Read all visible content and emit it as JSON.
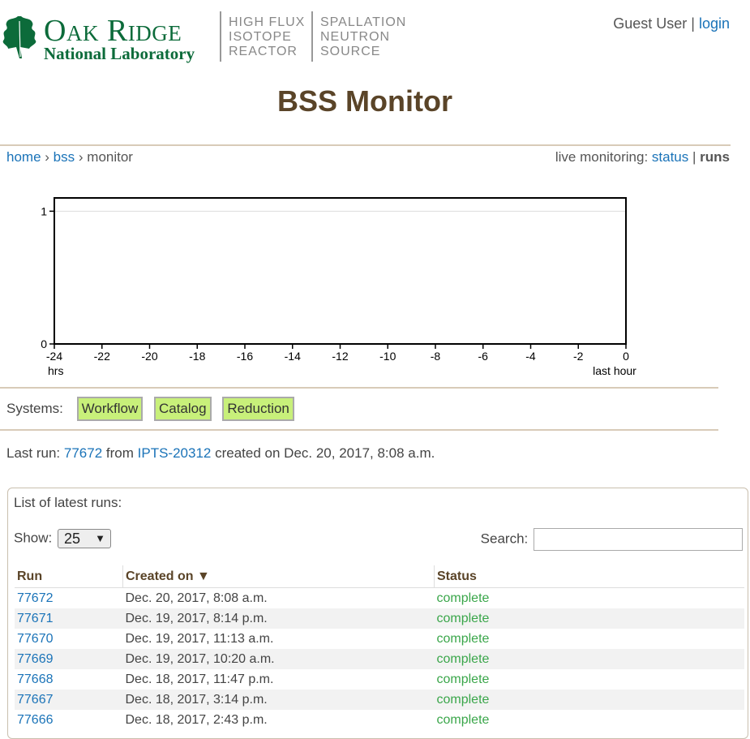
{
  "header": {
    "org_name": "Oak Ridge",
    "org_subtitle": "National Laboratory",
    "facility_1": "HIGH FLUX\nISOTOPE\nREACTOR",
    "facility_2": "SPALLATION\nNEUTRON\nSOURCE",
    "user_name": "Guest User",
    "separator": "|",
    "login_label": "login",
    "logo_icon": "oak-leaf-icon",
    "brand_color": "#0c6b3a"
  },
  "page_title": "BSS Monitor",
  "breadcrumb": {
    "home": "home",
    "sep": "›",
    "instrument": "bss",
    "current": "monitor"
  },
  "live_monitoring": {
    "label": "live monitoring:",
    "status_link": "status",
    "separator": "|",
    "runs_label": "runs"
  },
  "chart_data": {
    "type": "line",
    "series": [],
    "x_ticks": [
      "-24",
      "-22",
      "-20",
      "-18",
      "-16",
      "-14",
      "-12",
      "-10",
      "-8",
      "-6",
      "-4",
      "-2",
      "0"
    ],
    "xlim": [
      -24,
      0
    ],
    "y_ticks": [
      "0",
      "1"
    ],
    "ylim": [
      0,
      1.1
    ],
    "xlabel_left": "hrs",
    "xlabel_right": "last hour",
    "grid": "horizontal"
  },
  "systems": {
    "label": "Systems:",
    "items": [
      "Workflow",
      "Catalog",
      "Reduction"
    ],
    "color": "#c8f07a"
  },
  "last_run": {
    "prefix": "Last run:",
    "run": "77672",
    "from": "from",
    "ipts": "IPTS-20312",
    "created": "created on Dec. 20, 2017, 8:08 a.m."
  },
  "runs_panel": {
    "title": "List of latest runs:",
    "show_label": "Show:",
    "show_value": "25",
    "search_label": "Search:",
    "search_value": "",
    "columns": [
      "Run",
      "Created on ▼",
      "Status"
    ],
    "rows": [
      {
        "run": "77672",
        "created": "Dec. 20, 2017, 8:08 a.m.",
        "status": "complete"
      },
      {
        "run": "77671",
        "created": "Dec. 19, 2017, 8:14 p.m.",
        "status": "complete"
      },
      {
        "run": "77670",
        "created": "Dec. 19, 2017, 11:13 a.m.",
        "status": "complete"
      },
      {
        "run": "77669",
        "created": "Dec. 19, 2017, 10:20 a.m.",
        "status": "complete"
      },
      {
        "run": "77668",
        "created": "Dec. 18, 2017, 11:47 p.m.",
        "status": "complete"
      },
      {
        "run": "77667",
        "created": "Dec. 18, 2017, 3:14 p.m.",
        "status": "complete"
      },
      {
        "run": "77666",
        "created": "Dec. 18, 2017, 2:43 p.m.",
        "status": "complete"
      }
    ]
  }
}
